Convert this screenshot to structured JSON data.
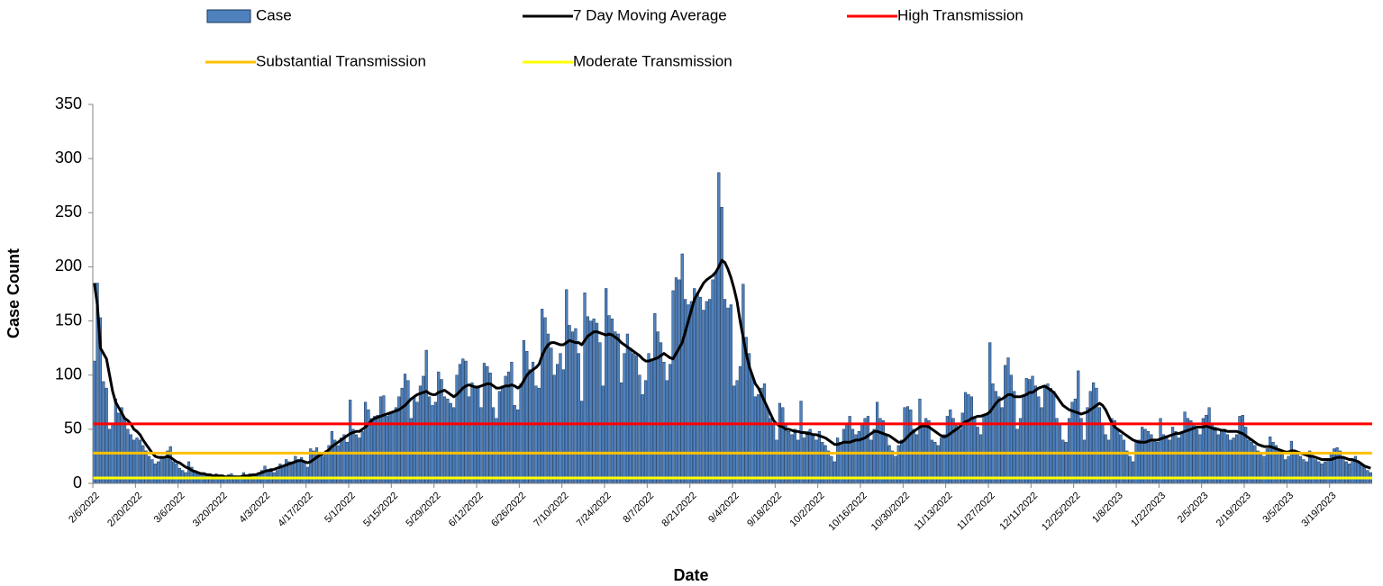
{
  "chart_data": {
    "type": "bar",
    "x_label": "Date",
    "y_label": "Case Count",
    "ylim": [
      0,
      350
    ],
    "yticks": [
      0,
      50,
      100,
      150,
      200,
      250,
      300,
      350
    ],
    "categories": [
      "2/6/2022",
      null,
      null,
      null,
      null,
      null,
      null,
      null,
      null,
      null,
      null,
      null,
      null,
      null,
      "2/20/2022",
      null,
      null,
      null,
      null,
      null,
      null,
      null,
      null,
      null,
      null,
      null,
      null,
      null,
      "3/6/2022",
      null,
      null,
      null,
      null,
      null,
      null,
      null,
      null,
      null,
      null,
      null,
      null,
      null,
      "3/20/2022",
      null,
      null,
      null,
      null,
      null,
      null,
      null,
      null,
      null,
      null,
      null,
      null,
      null,
      "4/3/2022",
      null,
      null,
      null,
      null,
      null,
      null,
      null,
      null,
      null,
      null,
      null,
      null,
      null,
      "4/17/2022",
      null,
      null,
      null,
      null,
      null,
      null,
      null,
      null,
      null,
      null,
      null,
      null,
      null,
      "5/1/2022",
      null,
      null,
      null,
      null,
      null,
      null,
      null,
      null,
      null,
      null,
      null,
      null,
      null,
      "5/15/2022",
      null,
      null,
      null,
      null,
      null,
      null,
      null,
      null,
      null,
      null,
      null,
      null,
      null,
      "5/29/2022",
      null,
      null,
      null,
      null,
      null,
      null,
      null,
      null,
      null,
      null,
      null,
      null,
      null,
      "6/12/2022",
      null,
      null,
      null,
      null,
      null,
      null,
      null,
      null,
      null,
      null,
      null,
      null,
      null,
      "6/26/2022",
      null,
      null,
      null,
      null,
      null,
      null,
      null,
      null,
      null,
      null,
      null,
      null,
      null,
      "7/10/2022",
      null,
      null,
      null,
      null,
      null,
      null,
      null,
      null,
      null,
      null,
      null,
      null,
      null,
      "7/24/2022",
      null,
      null,
      null,
      null,
      null,
      null,
      null,
      null,
      null,
      null,
      null,
      null,
      null,
      "8/7/2022",
      null,
      null,
      null,
      null,
      null,
      null,
      null,
      null,
      null,
      null,
      null,
      null,
      null,
      "8/21/2022",
      null,
      null,
      null,
      null,
      null,
      null,
      null,
      null,
      null,
      null,
      null,
      null,
      null,
      "9/4/2022",
      null,
      null,
      null,
      null,
      null,
      null,
      null,
      null,
      null,
      null,
      null,
      null,
      null,
      "9/18/2022",
      null,
      null,
      null,
      null,
      null,
      null,
      null,
      null,
      null,
      null,
      null,
      null,
      null,
      "10/2/2022",
      null,
      null,
      null,
      null,
      null,
      null,
      null,
      null,
      null,
      null,
      null,
      null,
      null,
      "10/16/2022",
      null,
      null,
      null,
      null,
      null,
      null,
      null,
      null,
      null,
      null,
      null,
      null,
      null,
      "10/30/2022",
      null,
      null,
      null,
      null,
      null,
      null,
      null,
      null,
      null,
      null,
      null,
      null,
      null,
      "11/13/2022",
      null,
      null,
      null,
      null,
      null,
      null,
      null,
      null,
      null,
      null,
      null,
      null,
      null,
      "11/27/2022",
      null,
      null,
      null,
      null,
      null,
      null,
      null,
      null,
      null,
      null,
      null,
      null,
      null,
      "12/11/2022",
      null,
      null,
      null,
      null,
      null,
      null,
      null,
      null,
      null,
      null,
      null,
      null,
      null,
      "12/25/2022",
      null,
      null,
      null,
      null,
      null,
      null,
      null,
      null,
      null,
      null,
      null,
      null,
      null,
      "1/8/2023",
      null,
      null,
      null,
      null,
      null,
      null,
      null,
      null,
      null,
      null,
      null,
      null,
      null,
      "1/22/2023",
      null,
      null,
      null,
      null,
      null,
      null,
      null,
      null,
      null,
      null,
      null,
      null,
      null,
      "2/5/2023",
      null,
      null,
      null,
      null,
      null,
      null,
      null,
      null,
      null,
      null,
      null,
      null,
      null,
      "2/19/2023",
      null,
      null,
      null,
      null,
      null,
      null,
      null,
      null,
      null,
      null,
      null,
      null,
      null,
      "3/5/2023",
      null,
      null,
      null,
      null,
      null,
      null,
      null,
      null,
      null,
      null,
      null,
      null,
      null,
      "3/19/2023",
      null,
      null,
      null,
      null,
      null,
      null,
      null,
      null,
      null,
      null,
      null,
      null,
      null
    ],
    "series": [
      {
        "name": "Case",
        "color": "#4f81bd",
        "values": [
          113,
          185,
          153,
          94,
          88,
          50,
          55,
          78,
          65,
          70,
          60,
          50,
          45,
          40,
          42,
          40,
          35,
          30,
          25,
          22,
          18,
          20,
          25,
          24,
          30,
          34,
          20,
          18,
          14,
          12,
          10,
          20,
          15,
          12,
          10,
          9,
          8,
          7,
          8,
          6,
          9,
          7,
          6,
          5,
          8,
          9,
          7,
          5,
          4,
          10,
          6,
          9,
          8,
          7,
          10,
          12,
          16,
          12,
          14,
          10,
          12,
          18,
          15,
          22,
          20,
          18,
          25,
          22,
          24,
          20,
          15,
          32,
          30,
          33,
          28,
          25,
          30,
          35,
          48,
          40,
          35,
          42,
          45,
          38,
          77,
          50,
          45,
          42,
          48,
          75,
          68,
          60,
          62,
          63,
          80,
          81,
          62,
          65,
          65,
          70,
          80,
          88,
          101,
          95,
          60,
          80,
          75,
          90,
          99,
          123,
          80,
          72,
          75,
          103,
          96,
          80,
          78,
          74,
          70,
          100,
          110,
          115,
          113,
          80,
          93,
          90,
          90,
          70,
          111,
          108,
          102,
          70,
          60,
          85,
          90,
          99,
          103,
          112,
          72,
          68,
          92,
          132,
          122,
          105,
          112,
          90,
          88,
          161,
          153,
          138,
          125,
          100,
          110,
          120,
          105,
          179,
          146,
          140,
          143,
          120,
          76,
          176,
          154,
          150,
          152,
          148,
          130,
          90,
          180,
          155,
          152,
          140,
          138,
          93,
          120,
          138,
          125,
          120,
          118,
          100,
          82,
          95,
          120,
          115,
          157,
          140,
          130,
          112,
          95,
          110,
          178,
          190,
          188,
          212,
          170,
          165,
          168,
          180,
          175,
          172,
          160,
          168,
          170,
          188,
          195,
          287,
          255,
          170,
          162,
          165,
          90,
          95,
          108,
          184,
          135,
          120,
          100,
          80,
          82,
          88,
          92,
          70,
          60,
          55,
          40,
          74,
          70,
          55,
          48,
          45,
          50,
          40,
          76,
          42,
          48,
          50,
          45,
          40,
          48,
          38,
          35,
          30,
          25,
          20,
          42,
          38,
          50,
          55,
          62,
          50,
          45,
          48,
          55,
          60,
          62,
          40,
          50,
          75,
          60,
          58,
          45,
          35,
          30,
          25,
          35,
          40,
          70,
          71,
          68,
          50,
          45,
          78,
          55,
          60,
          58,
          40,
          38,
          35,
          42,
          45,
          62,
          68,
          60,
          55,
          50,
          65,
          84,
          82,
          80,
          60,
          52,
          45,
          62,
          64,
          130,
          92,
          85,
          80,
          70,
          109,
          116,
          100,
          85,
          50,
          60,
          80,
          97,
          96,
          99,
          90,
          80,
          70,
          89,
          92,
          88,
          85,
          60,
          55,
          40,
          38,
          60,
          75,
          78,
          104,
          60,
          40,
          70,
          85,
          93,
          88,
          70,
          55,
          45,
          40,
          60,
          58,
          50,
          45,
          40,
          30,
          25,
          20,
          38,
          40,
          52,
          50,
          48,
          45,
          40,
          38,
          60,
          45,
          44,
          40,
          52,
          48,
          42,
          46,
          66,
          60,
          58,
          55,
          50,
          45,
          60,
          63,
          70,
          55,
          52,
          45,
          48,
          50,
          45,
          40,
          42,
          45,
          62,
          63,
          52,
          40,
          38,
          35,
          30,
          28,
          25,
          32,
          43,
          38,
          35,
          30,
          28,
          22,
          25,
          39,
          30,
          28,
          25,
          22,
          20,
          30,
          25,
          22,
          20,
          18,
          20,
          22,
          28,
          32,
          33,
          30,
          25,
          20,
          18,
          22,
          25,
          20,
          18,
          15,
          12,
          10
        ]
      },
      {
        "name": "7 Day Moving Average",
        "type": "line",
        "color": "#000000",
        "values": [
          185,
          165,
          125,
          120,
          115,
          100,
          85,
          75,
          70,
          65,
          60,
          58,
          55,
          50,
          48,
          45,
          40,
          36,
          32,
          28,
          25,
          24,
          24,
          24,
          25,
          24,
          22,
          20,
          19,
          17,
          15,
          14,
          12,
          11,
          10,
          9,
          9,
          8,
          8,
          7,
          7,
          7,
          7,
          6,
          6,
          6,
          6,
          6,
          6,
          7,
          7,
          7,
          8,
          8,
          9,
          10,
          11,
          12,
          12,
          13,
          14,
          15,
          16,
          17,
          18,
          19,
          20,
          21,
          21,
          20,
          19,
          20,
          22,
          24,
          26,
          27,
          29,
          31,
          34,
          36,
          38,
          40,
          42,
          44,
          46,
          47,
          48,
          48,
          50,
          52,
          55,
          58,
          60,
          61,
          62,
          63,
          64,
          65,
          66,
          67,
          68,
          70,
          72,
          75,
          78,
          80,
          82,
          83,
          84,
          85,
          83,
          82,
          82,
          84,
          85,
          86,
          84,
          82,
          80,
          82,
          85,
          88,
          90,
          91,
          90,
          89,
          89,
          90,
          91,
          92,
          92,
          90,
          88,
          88,
          89,
          90,
          90,
          91,
          90,
          88,
          90,
          95,
          100,
          103,
          105,
          107,
          110,
          118,
          124,
          128,
          130,
          130,
          129,
          128,
          128,
          130,
          132,
          131,
          130,
          130,
          128,
          132,
          136,
          138,
          140,
          140,
          139,
          138,
          137,
          138,
          137,
          135,
          133,
          130,
          128,
          126,
          124,
          122,
          120,
          118,
          115,
          113,
          113,
          114,
          115,
          116,
          118,
          120,
          118,
          116,
          115,
          120,
          125,
          130,
          140,
          150,
          160,
          170,
          175,
          180,
          185,
          188,
          190,
          192,
          195,
          200,
          206,
          204,
          198,
          190,
          180,
          168,
          150,
          135,
          120,
          108,
          100,
          92,
          88,
          82,
          76,
          70,
          64,
          58,
          55,
          53,
          52,
          50,
          50,
          49,
          48,
          48,
          47,
          47,
          46,
          46,
          45,
          45,
          44,
          43,
          42,
          40,
          38,
          36,
          36,
          37,
          38,
          38,
          38,
          39,
          40,
          40,
          41,
          42,
          44,
          46,
          48,
          48,
          47,
          46,
          45,
          44,
          42,
          40,
          38,
          38,
          40,
          43,
          46,
          48,
          50,
          52,
          53,
          53,
          52,
          50,
          48,
          46,
          44,
          43,
          44,
          46,
          48,
          50,
          52,
          55,
          57,
          58,
          60,
          61,
          62,
          62,
          63,
          64,
          66,
          70,
          74,
          77,
          78,
          80,
          82,
          82,
          80,
          80,
          80,
          81,
          82,
          84,
          84,
          86,
          88,
          89,
          90,
          88,
          86,
          84,
          80,
          76,
          72,
          70,
          68,
          67,
          66,
          65,
          64,
          65,
          66,
          68,
          70,
          72,
          74,
          72,
          68,
          62,
          56,
          52,
          50,
          48,
          46,
          44,
          42,
          40,
          39,
          38,
          38,
          38,
          39,
          40,
          40,
          40,
          41,
          42,
          43,
          44,
          45,
          46,
          46,
          47,
          48,
          49,
          50,
          51,
          52,
          52,
          52,
          53,
          52,
          51,
          50,
          50,
          49,
          49,
          48,
          48,
          48,
          48,
          47,
          46,
          44,
          42,
          40,
          38,
          36,
          35,
          34,
          34,
          34,
          33,
          32,
          31,
          30,
          29,
          29,
          30,
          30,
          29,
          28,
          27,
          26,
          25,
          25,
          24,
          23,
          22,
          22,
          22,
          22,
          23,
          24,
          24,
          24,
          23,
          22,
          22,
          21,
          20,
          18,
          16,
          15,
          14
        ]
      }
    ],
    "reference_lines": [
      {
        "name": "High Transmission",
        "color": "#ff0000",
        "value": 55
      },
      {
        "name": "Substantial Transmission",
        "color": "#ffc000",
        "value": 28
      },
      {
        "name": "Moderate Transmission",
        "color": "#ffff00",
        "value": 5
      }
    ]
  }
}
